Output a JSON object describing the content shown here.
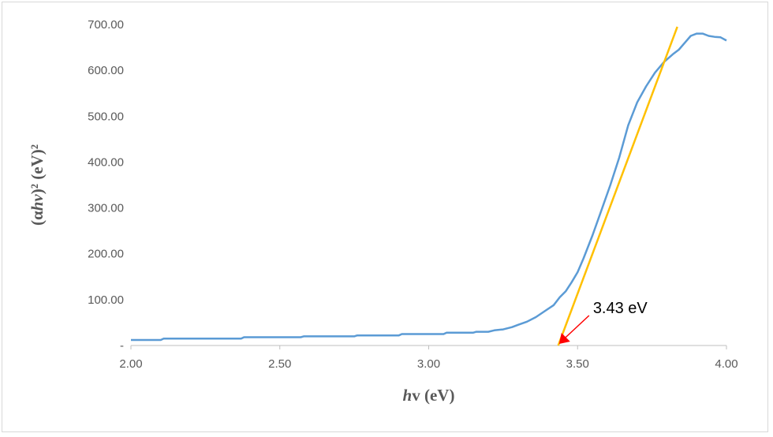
{
  "chart_data": {
    "type": "line",
    "xlabel_italic": "h",
    "xlabel_rest": "v (eV)",
    "ylabel_pre": "(α",
    "ylabel_italic": "hv",
    "ylabel_post": ")² (eV)²",
    "xlim": [
      2.0,
      4.0
    ],
    "ylim": [
      0,
      700
    ],
    "x_ticks": [
      2.0,
      2.5,
      3.0,
      3.5,
      4.0
    ],
    "x_tick_labels": [
      "2.00",
      "2.50",
      "3.00",
      "3.50",
      "4.00"
    ],
    "y_ticks": [
      0,
      100,
      200,
      300,
      400,
      500,
      600,
      700
    ],
    "y_tick_labels": [
      "-",
      "100.00",
      "200.00",
      "300.00",
      "400.00",
      "500.00",
      "600.00",
      "700.00"
    ],
    "grid": false,
    "legend": "none",
    "series": [
      {
        "color": "#5b9bd5",
        "x": [
          2.0,
          2.1,
          2.11,
          2.2,
          2.3,
          2.37,
          2.38,
          2.5,
          2.57,
          2.58,
          2.7,
          2.75,
          2.76,
          2.85,
          2.9,
          2.91,
          3.0,
          3.05,
          3.06,
          3.15,
          3.16,
          3.2,
          3.22,
          3.25,
          3.28,
          3.3,
          3.33,
          3.36,
          3.39,
          3.42,
          3.44,
          3.46,
          3.48,
          3.5,
          3.52,
          3.55,
          3.58,
          3.61,
          3.64,
          3.67,
          3.7,
          3.73,
          3.76,
          3.79,
          3.82,
          3.84,
          3.86,
          3.88,
          3.9,
          3.92,
          3.94,
          3.96,
          3.98,
          4.0
        ],
        "y": [
          12,
          12,
          15,
          15,
          15,
          15,
          18,
          18,
          18,
          20,
          20,
          20,
          22,
          22,
          22,
          25,
          25,
          25,
          28,
          28,
          30,
          30,
          33,
          35,
          40,
          45,
          52,
          62,
          75,
          88,
          105,
          118,
          138,
          160,
          190,
          240,
          295,
          350,
          410,
          480,
          530,
          565,
          595,
          618,
          635,
          645,
          660,
          675,
          680,
          680,
          675,
          673,
          672,
          665
        ]
      }
    ],
    "fit_line": {
      "color": "#ffc000",
      "x": [
        3.435,
        3.835
      ],
      "y": [
        0,
        695
      ]
    },
    "annotation": {
      "text": "3.43 eV",
      "target_x": 3.43,
      "target_y": 0,
      "arrow_color": "#ff0000"
    }
  }
}
